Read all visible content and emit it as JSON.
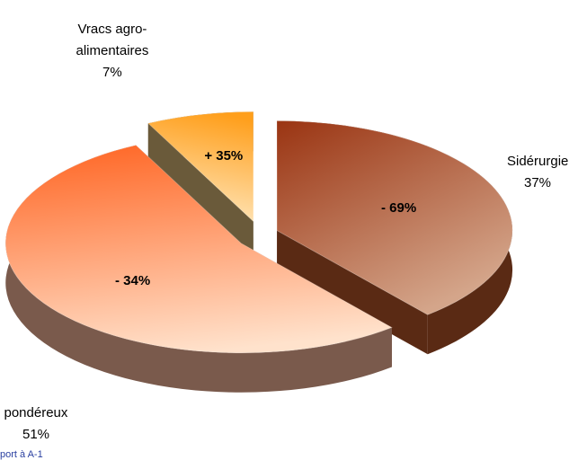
{
  "chart_data": {
    "type": "pie",
    "categories": [
      "Sidérurgie",
      "pondéreux",
      "Vracs agro-\nalimentaires"
    ],
    "values": [
      37,
      51,
      7
    ],
    "value_labels": [
      "37%",
      "51%",
      "7%"
    ],
    "changes": [
      -69,
      -34,
      35
    ],
    "change_labels": [
      "- 69%",
      "- 34%",
      "+ 35%"
    ],
    "colors": [
      "#a8441e",
      "#ff6a2a",
      "#ff9f1c"
    ],
    "note": "port à A-1"
  }
}
